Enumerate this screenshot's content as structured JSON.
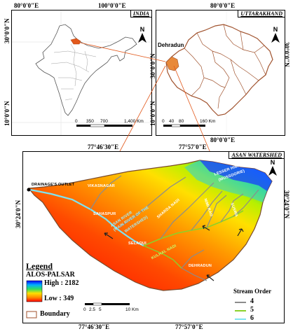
{
  "india_panel": {
    "title": "INDIA",
    "top_coords": [
      "80°0'0\"E",
      "100°0'0\"E"
    ],
    "left_coords": [
      "30°0'0\"N",
      "10°0'0\"N"
    ],
    "scale": {
      "labels": [
        "0",
        "350",
        "700",
        "1,400 Km"
      ]
    }
  },
  "uttarakhand_panel": {
    "title": "UTTARAKHAND",
    "top_coords": [
      "80°0'0\"E"
    ],
    "bottom_coords": [
      "80°0'0\"E"
    ],
    "left_coords": [
      "30°0'0\"N",
      "10°0'0\"N"
    ],
    "right_coords": [
      "30°0'0\"N"
    ],
    "city_label": "Dehradun",
    "scale": {
      "labels": [
        "0",
        "40",
        "80",
        "160 Km"
      ]
    }
  },
  "watershed_panel": {
    "title": "ASAN WATERSHED",
    "top_coords": [
      "77°46'30\"E",
      "77°57'0\"E"
    ],
    "bottom_coords": [
      "77°46'30\"E",
      "77°57'0\"E"
    ],
    "left_coords": [
      "30°24'0\"N"
    ],
    "right_coords": [
      "30°24'0\"N"
    ],
    "places": {
      "outlet": "DRAINAGE'S OUTLET",
      "vikasnagar": "VIKASNAGAR",
      "sahaspur": "SAHASPUR",
      "selaqui": "SELAQUI",
      "dehradun": "DEHRADUN",
      "lesser_himalaya": "LESSER HIMALAYA",
      "mussoorie": "(MUSSOORIE)",
      "siwalik": "SIWALIK RANGES",
      "asan_river": "ASAN RIVER",
      "asan_river_sub": "(MAIN RIVER OF THE",
      "asan_river_sub2": "WATERSHED)",
      "sharda_nadi": "SHARDA NADI",
      "kulhal": "KULHAL NADI",
      "nala1": "NIMI RAO",
      "nala2": "SUSWA"
    },
    "scale": {
      "labels": [
        "0",
        "2.5",
        "5",
        "10 Km"
      ]
    }
  },
  "legend": {
    "title": "Legend",
    "layer": "ALOS-PALSAR",
    "high_label": "High : 2182",
    "low_label": "Low : 349",
    "boundary_label": "Boundary"
  },
  "stream_order": {
    "title": "Stream Order",
    "items": [
      {
        "order": "4",
        "color": "#8c8c8c"
      },
      {
        "order": "5",
        "color": "#8bd12a"
      },
      {
        "order": "6",
        "color": "#7fe3f0"
      }
    ]
  },
  "colors": {
    "boundary": "#a0522d",
    "river6": "#7fe3f0",
    "river5": "#8bd12a",
    "river4": "#8c8c8c",
    "india_state": "#e2591c",
    "elev_high": "#0000ff",
    "elev_low": "#ff0000"
  }
}
